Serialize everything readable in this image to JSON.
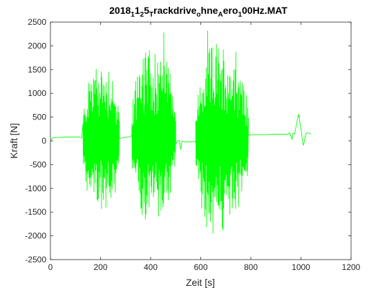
{
  "chart_data": {
    "type": "line",
    "title_parts": [
      {
        "text": "2018",
        "sub": false
      },
      {
        "text": "1",
        "sub": true
      },
      {
        "text": "1",
        "sub": false
      },
      {
        "text": "2",
        "sub": true
      },
      {
        "text": "5",
        "sub": false
      },
      {
        "text": "T",
        "sub": true
      },
      {
        "text": "rackdrive",
        "sub": false
      },
      {
        "text": "o",
        "sub": true
      },
      {
        "text": "hne",
        "sub": false
      },
      {
        "text": "A",
        "sub": true
      },
      {
        "text": "ero",
        "sub": false
      },
      {
        "text": "1",
        "sub": true
      },
      {
        "text": "00Hz.MAT",
        "sub": false
      }
    ],
    "xlabel": "Zeit [s]",
    "ylabel": "Kraft [N]",
    "xlim": [
      0,
      1200
    ],
    "ylim": [
      -2500,
      2500
    ],
    "xticks": [
      0,
      200,
      400,
      600,
      800,
      1000,
      1200
    ],
    "yticks": [
      -2500,
      -2000,
      -1500,
      -1000,
      -500,
      0,
      500,
      1000,
      1500,
      2000,
      2500
    ],
    "grid": false,
    "series": [
      {
        "color": "#00ff00",
        "baseline": [
          [
            0,
            0
          ],
          [
            8,
            60
          ],
          [
            20,
            70
          ],
          [
            40,
            75
          ],
          [
            60,
            80
          ],
          [
            90,
            82
          ],
          [
            115,
            80
          ],
          [
            125,
            60
          ]
        ],
        "bursts": [
          {
            "x_start": 130,
            "x_end": 275,
            "max": 1950,
            "min": -1650
          },
          {
            "x_start": 325,
            "x_end": 500,
            "max": 2450,
            "min": -1850
          },
          {
            "x_start": 580,
            "x_end": 790,
            "max": 2370,
            "min": -2150
          }
        ],
        "gaps": [
          [
            [
              275,
              50
            ],
            [
              285,
              60
            ],
            [
              300,
              75
            ],
            [
              315,
              85
            ],
            [
              325,
              110
            ]
          ],
          [
            [
              500,
              -70
            ],
            [
              508,
              0
            ],
            [
              515,
              10
            ],
            [
              520,
              -180
            ],
            [
              525,
              0
            ],
            [
              535,
              -20
            ],
            [
              550,
              -25
            ],
            [
              565,
              -20
            ],
            [
              575,
              -10
            ],
            [
              580,
              -30
            ]
          ],
          [
            [
              790,
              120
            ],
            [
              800,
              130
            ],
            [
              850,
              130
            ],
            [
              900,
              140
            ],
            [
              950,
              140
            ],
            [
              955,
              170
            ],
            [
              960,
              100
            ],
            [
              965,
              30
            ],
            [
              968,
              160
            ],
            [
              975,
              140
            ]
          ]
        ],
        "spike": [
          [
            975,
            150
          ],
          [
            980,
            290
          ],
          [
            985,
            430
          ],
          [
            990,
            560
          ],
          [
            993,
            480
          ],
          [
            998,
            300
          ],
          [
            1003,
            150
          ],
          [
            1006,
            -20
          ],
          [
            1010,
            -90
          ],
          [
            1014,
            0
          ],
          [
            1018,
            120
          ],
          [
            1022,
            170
          ],
          [
            1030,
            160
          ],
          [
            1040,
            150
          ]
        ]
      }
    ]
  }
}
